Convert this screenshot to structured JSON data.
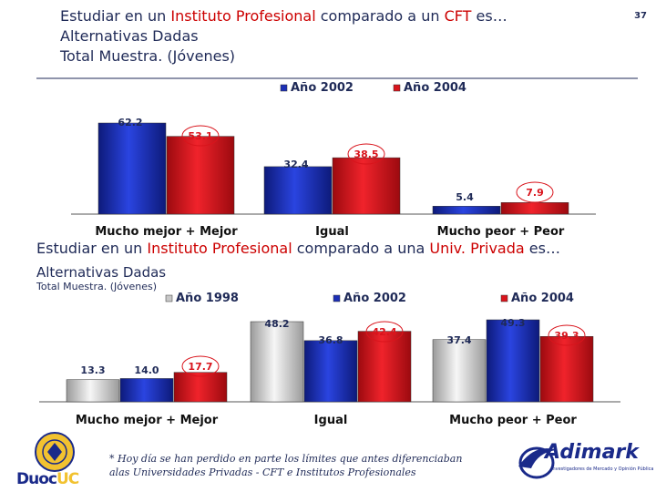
{
  "page_number": "37",
  "top": {
    "title_pre": "Estudiar en un ",
    "title_red": "Instituto Profesional",
    "title_mid": " comparado a  un ",
    "title_red2": "CFT",
    "title_post": " es…",
    "subtitle1": "Alternativas Dadas",
    "subtitle2": "Total Muestra. (Jóvenes)"
  },
  "bottom": {
    "title_pre": "Estudiar en un ",
    "title_red": "Instituto Profesional",
    "title_mid": " comparado a una ",
    "title_red2": "Univ. Privada",
    "title_post": " es…",
    "subtitle1": "Alternativas Dadas",
    "subtitle2": "Total Muestra. (Jóvenes)"
  },
  "colors": {
    "gray": "#c8c8c8",
    "blue": "#1c2fb5",
    "red": "#d9141c",
    "text": "#1f2a57"
  },
  "chart_data": [
    {
      "type": "bar",
      "categories": [
        "Mucho mejor + Mejor",
        "Igual",
        "Mucho peor + Peor"
      ],
      "series": [
        {
          "name": "Año 2002",
          "values": [
            62.2,
            32.4,
            5.4
          ]
        },
        {
          "name": "Año 2004",
          "values": [
            53.1,
            38.5,
            7.9
          ]
        }
      ],
      "value_labels": [
        [
          "62.2",
          "32.4",
          "5.4"
        ],
        [
          "53.1",
          "38.5",
          "7.9"
        ]
      ],
      "ylim": [
        0,
        70
      ],
      "legend": "top"
    },
    {
      "type": "bar",
      "categories": [
        "Mucho mejor + Mejor",
        "Igual",
        "Mucho peor + Peor"
      ],
      "series": [
        {
          "name": "Año 1998",
          "values": [
            13.3,
            48.2,
            37.4
          ]
        },
        {
          "name": "Año 2002",
          "values": [
            14.0,
            36.8,
            49.3
          ]
        },
        {
          "name": "Año 2004",
          "values": [
            17.7,
            42.4,
            39.3
          ]
        }
      ],
      "value_labels": [
        [
          "13.3",
          "48.2",
          "37.4"
        ],
        [
          "14.0",
          "36.8",
          "49.3"
        ],
        [
          "17.7",
          "42.4",
          "39.3"
        ]
      ],
      "ylim": [
        0,
        70
      ],
      "legend": "top"
    }
  ],
  "footnote": "* Hoy día se han perdido en parte los límites que antes diferenciaban alas Universidades Privadas - CFT e Institutos Profesionales",
  "logos": {
    "duoc": "Duoc UC",
    "adimark": "Adimark",
    "adimark_tagline": "Investigadores de Mercado y Opinión Pública"
  }
}
